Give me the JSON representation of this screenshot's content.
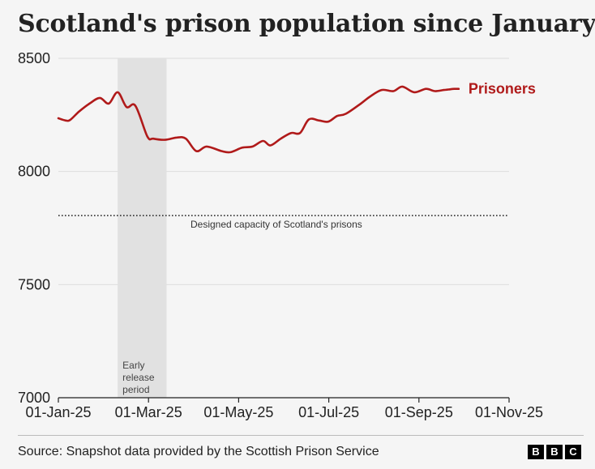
{
  "chart_data": {
    "type": "line",
    "title": "Scotland's prison population since January",
    "xlabel": "",
    "ylabel": "",
    "x_ticks": [
      "01-Jan-25",
      "01-Mar-25",
      "01-May-25",
      "01-Jul-25",
      "01-Sep-25",
      "01-Nov-25"
    ],
    "x_range_days": [
      0,
      304
    ],
    "y_ticks": [
      8500,
      8000,
      7500,
      7000
    ],
    "ylim": [
      7000,
      8500
    ],
    "grid": true,
    "series": [
      {
        "name": "Prisoners",
        "color": "#b01a1a",
        "x_days": [
          0,
          5,
          8,
          14,
          21,
          28,
          34,
          40,
          46,
          52,
          60,
          64,
          72,
          80,
          86,
          93,
          100,
          110,
          116,
          124,
          131,
          138,
          143,
          150,
          157,
          163,
          169,
          176,
          182,
          188,
          194,
          204,
          210,
          218,
          226,
          232,
          240,
          248,
          254,
          260,
          263,
          267,
          270
        ],
        "values": [
          8235,
          8225,
          8228,
          8265,
          8300,
          8325,
          8300,
          8350,
          8285,
          8290,
          8155,
          8145,
          8140,
          8150,
          8145,
          8090,
          8110,
          8090,
          8085,
          8105,
          8110,
          8135,
          8115,
          8145,
          8170,
          8170,
          8230,
          8225,
          8220,
          8245,
          8255,
          8300,
          8330,
          8360,
          8355,
          8375,
          8350,
          8365,
          8355,
          8360,
          8362,
          8365,
          8365
        ]
      }
    ],
    "reference_line": {
      "label": "Designed capacity of Scotland's prisons",
      "value": 7805
    },
    "shaded_region": {
      "label": [
        "Early",
        "release",
        "period"
      ],
      "start_day": 40,
      "end_day": 73
    },
    "series_label": "Prisoners",
    "source": "Source: Snapshot data provided by the Scottish Prison Service",
    "logo_letters": [
      "B",
      "B",
      "C"
    ]
  }
}
